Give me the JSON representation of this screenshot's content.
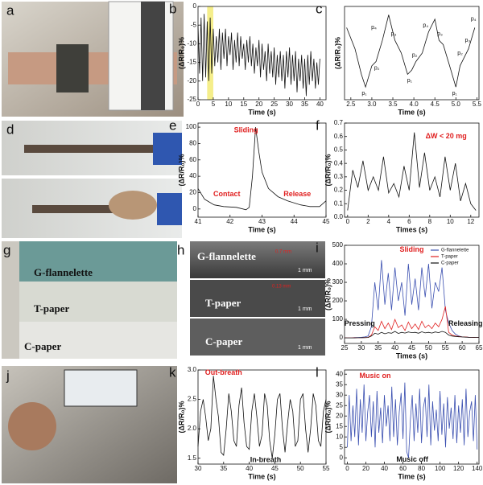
{
  "chart_data": [
    {
      "type": "line",
      "panel": "b",
      "xlabel": "Time (s)",
      "ylabel": "(ΔR/R₀)%",
      "xlim": [
        0,
        42
      ],
      "ylim": [
        -25,
        0
      ],
      "xticks": [
        0,
        5,
        10,
        15,
        20,
        25,
        30,
        35,
        40
      ],
      "yticks": [
        -25,
        -20,
        -15,
        -10,
        -5,
        0
      ],
      "highlight_x": [
        3,
        5
      ],
      "highlight_color": "#f5ee8a",
      "x": [
        0,
        0.5,
        1,
        1.5,
        2,
        2.5,
        3,
        3.5,
        4,
        4.5,
        5,
        5.5,
        6,
        6.5,
        7,
        7.5,
        8,
        8.5,
        9,
        9.5,
        10,
        10.5,
        11,
        11.5,
        12,
        12.5,
        13,
        13.5,
        14,
        14.5,
        15,
        15.5,
        16,
        16.5,
        17,
        17.5,
        18,
        18.5,
        19,
        19.5,
        20,
        20.5,
        21,
        21.5,
        22,
        22.5,
        23,
        23.5,
        24,
        24.5,
        25,
        25.5,
        26,
        26.5,
        27,
        27.5,
        28,
        28.5,
        29,
        29.5,
        30,
        30.5,
        31,
        31.5,
        32,
        32.5,
        33,
        33.5,
        34,
        34.5,
        35,
        35.5,
        36,
        36.5,
        37,
        37.5,
        38,
        38.5,
        39,
        39.5,
        40
      ],
      "series": [
        {
          "color": "#111111",
          "values": [
            -5,
            -18,
            -3,
            -20,
            -2,
            -19,
            -4,
            -20,
            -3,
            -18,
            -6,
            -16,
            -8,
            -15,
            -6,
            -17,
            -7,
            -14,
            -6,
            -16,
            -8,
            -13,
            -7,
            -17,
            -9,
            -15,
            -7,
            -16,
            -8,
            -14,
            -10,
            -17,
            -9,
            -15,
            -8,
            -16,
            -10,
            -18,
            -11,
            -16,
            -9,
            -19,
            -10,
            -17,
            -12,
            -20,
            -10,
            -18,
            -12,
            -19,
            -11,
            -21,
            -13,
            -19,
            -12,
            -20,
            -13,
            -22,
            -12,
            -19,
            -11,
            -21,
            -13,
            -20,
            -12,
            -23,
            -14,
            -20,
            -13,
            -22,
            -14,
            -24,
            -13,
            -21,
            -12,
            -20,
            -14,
            -22,
            -15,
            -21,
            -14
          ]
        }
      ]
    },
    {
      "type": "line",
      "panel": "c",
      "xlabel": "Time (s)",
      "ylabel": "(ΔR/R₀)%",
      "xlim": [
        2.35,
        5.55
      ],
      "ylim": [
        -20,
        2
      ],
      "xticks": [
        2.5,
        {
          "value": 3,
          "label": "3.0"
        },
        3.5,
        {
          "value": 4,
          "label": "4.0"
        },
        4.5,
        {
          "value": 5,
          "label": "5.0"
        },
        5.5
      ],
      "x": [
        2.4,
        2.6,
        2.75,
        2.85,
        3.0,
        3.1,
        3.25,
        3.4,
        3.55,
        3.7,
        3.85,
        3.95,
        4.05,
        4.2,
        4.35,
        4.5,
        4.6,
        4.7,
        4.85,
        5.0,
        5.1,
        5.2,
        5.3,
        5.45
      ],
      "series": [
        {
          "color": "#111111",
          "values": [
            -3,
            -8,
            -14,
            -17,
            -12,
            -11,
            -6,
            0,
            -6,
            -9,
            -14,
            -13,
            -11,
            -9,
            -4,
            -1,
            -6,
            -7,
            -12,
            -17,
            -12,
            -10,
            -8,
            -3
          ]
        }
      ],
      "annotations": [
        {
          "text": "p₁"
        },
        {
          "text": "p₂"
        },
        {
          "text": "p₃"
        },
        {
          "text": "p₄"
        },
        {
          "text": "p₁"
        },
        {
          "text": "p₂"
        },
        {
          "text": "p₃"
        },
        {
          "text": "p₄"
        },
        {
          "text": "p₁"
        },
        {
          "text": "p₂"
        },
        {
          "text": "p₃"
        },
        {
          "text": "p₄"
        }
      ]
    },
    {
      "type": "line",
      "panel": "e",
      "xlabel": "Time (s)",
      "ylabel": "(ΔR/R₀)%",
      "xlim": [
        41,
        45
      ],
      "ylim": [
        -10,
        105
      ],
      "xticks": [
        41,
        42,
        43,
        44,
        45
      ],
      "yticks": [
        0,
        20,
        40,
        60,
        80,
        100
      ],
      "x": [
        41,
        41.2,
        41.5,
        41.8,
        42.2,
        42.5,
        42.6,
        42.7,
        42.8,
        42.9,
        43,
        43.2,
        43.5,
        43.8,
        44.2,
        44.5,
        44.8,
        45
      ],
      "series": [
        {
          "color": "#111111",
          "values": [
            25,
            12,
            5,
            3,
            2,
            -1,
            2,
            40,
            100,
            70,
            45,
            25,
            15,
            10,
            5,
            3,
            3,
            10
          ]
        }
      ],
      "annotations": [
        {
          "text": "Sliding",
          "color": "#e02020"
        },
        {
          "text": "Contact",
          "color": "#e02020"
        },
        {
          "text": "Release",
          "color": "#e02020"
        }
      ]
    },
    {
      "type": "line",
      "panel": "f",
      "xlabel": "Times (s)",
      "ylabel": "(ΔR/R₀)%",
      "xlim": [
        -0.3,
        12.8
      ],
      "ylim": [
        0,
        0.7
      ],
      "xticks": [
        0,
        2,
        4,
        6,
        8,
        10,
        12
      ],
      "yticks": [
        {
          "value": 0,
          "label": "0.0"
        },
        0.1,
        0.2,
        0.3,
        0.4,
        0.5,
        0.6,
        0.7
      ],
      "x": [
        0,
        0.5,
        1,
        1.5,
        2,
        2.5,
        3,
        3.5,
        4,
        4.5,
        5,
        5.5,
        6,
        6.5,
        7,
        7.5,
        8,
        8.5,
        9,
        9.5,
        10,
        10.5,
        11,
        11.5,
        12,
        12.5
      ],
      "series": [
        {
          "color": "#111111",
          "values": [
            0.05,
            0.35,
            0.22,
            0.42,
            0.2,
            0.3,
            0.2,
            0.45,
            0.18,
            0.25,
            0.15,
            0.38,
            0.2,
            0.63,
            0.22,
            0.48,
            0.2,
            0.3,
            0.15,
            0.45,
            0.2,
            0.4,
            0.12,
            0.25,
            0.1,
            0.05
          ]
        }
      ],
      "annotations": [
        {
          "text": "ΔW < 20 mg",
          "color": "#e02020"
        }
      ]
    },
    {
      "type": "line",
      "panel": "i",
      "xlabel": "Times (s)",
      "ylabel": "(ΔR/R₀)%",
      "legend": "upper right",
      "xlim": [
        25,
        65
      ],
      "ylim": [
        -30,
        500
      ],
      "xticks": [
        25,
        30,
        35,
        40,
        45,
        50,
        55,
        60,
        65
      ],
      "yticks": [
        0,
        100,
        200,
        300,
        400,
        500
      ],
      "x": [
        25,
        26,
        27,
        28,
        29,
        30,
        31,
        32,
        33,
        34,
        35,
        36,
        37,
        38,
        39,
        40,
        41,
        42,
        43,
        44,
        45,
        46,
        47,
        48,
        49,
        50,
        51,
        52,
        53,
        54,
        55,
        56,
        57,
        58,
        59,
        60,
        61,
        62,
        63,
        64,
        65
      ],
      "series": [
        {
          "name": "G-flannelette",
          "color": "#3a4fb0",
          "values": [
            0,
            0,
            0,
            2,
            2,
            3,
            5,
            10,
            60,
            300,
            150,
            420,
            180,
            350,
            150,
            380,
            200,
            300,
            120,
            400,
            180,
            320,
            150,
            380,
            220,
            400,
            160,
            300,
            250,
            380,
            150,
            80,
            40,
            20,
            10,
            5,
            5,
            3,
            3,
            2,
            2
          ]
        },
        {
          "name": "T-paper",
          "color": "#e02020",
          "values": [
            0,
            0,
            0,
            1,
            1,
            1,
            2,
            2,
            15,
            60,
            40,
            90,
            50,
            80,
            45,
            100,
            55,
            70,
            40,
            85,
            50,
            75,
            45,
            90,
            55,
            70,
            50,
            80,
            60,
            100,
            170,
            30,
            15,
            10,
            8,
            5,
            5,
            3,
            3,
            2,
            2
          ]
        },
        {
          "name": "C-paper",
          "color": "#111111",
          "values": [
            0,
            0,
            0,
            0,
            1,
            1,
            1,
            2,
            10,
            25,
            20,
            30,
            22,
            28,
            25,
            35,
            24,
            30,
            26,
            32,
            28,
            30,
            25,
            33,
            27,
            30,
            26,
            32,
            28,
            35,
            30,
            15,
            10,
            8,
            6,
            5,
            4,
            3,
            3,
            2,
            2
          ]
        }
      ],
      "annotations": [
        {
          "text": "Sliding",
          "color": "#e02020"
        },
        {
          "text": "Pressing"
        },
        {
          "text": "Releasing"
        }
      ]
    },
    {
      "type": "line",
      "panel": "k",
      "xlabel": "Time (s)",
      "ylabel": "(ΔR/R₀)%",
      "xlim": [
        30,
        55
      ],
      "ylim": [
        1.4,
        3.0
      ],
      "xticks": [
        30,
        35,
        40,
        45,
        50,
        55
      ],
      "yticks": [
        1.5,
        {
          "value": 2,
          "label": "2.0"
        },
        2.5,
        {
          "value": 3,
          "label": "3.0"
        }
      ],
      "x": [
        30,
        30.5,
        31,
        31.5,
        32,
        32.5,
        33,
        33.5,
        34,
        34.5,
        35,
        35.5,
        36,
        36.5,
        37,
        37.5,
        38,
        38.5,
        39,
        39.5,
        40,
        40.5,
        41,
        41.5,
        42,
        42.5,
        43,
        43.5,
        44,
        44.5,
        45,
        45.5,
        46,
        46.5,
        47,
        47.5,
        48,
        48.5,
        49,
        49.5,
        50,
        50.5,
        51,
        51.5,
        52,
        52.5,
        53,
        53.5,
        54,
        54.5,
        55
      ],
      "series": [
        {
          "color": "#111111",
          "values": [
            1.7,
            2.3,
            2.5,
            2.2,
            1.8,
            2.0,
            2.9,
            2.5,
            2.2,
            1.6,
            1.55,
            2.0,
            2.6,
            2.3,
            1.8,
            1.7,
            2.4,
            2.7,
            2.1,
            1.7,
            1.65,
            2.3,
            2.6,
            2.2,
            1.7,
            1.9,
            2.6,
            2.4,
            1.8,
            1.5,
            1.9,
            2.5,
            2.6,
            2.0,
            1.6,
            2.1,
            2.5,
            2.3,
            1.7,
            1.8,
            2.5,
            2.6,
            2.0,
            1.6,
            2.0,
            2.6,
            2.4,
            1.8,
            1.7,
            2.3,
            2.5
          ]
        }
      ],
      "annotations": [
        {
          "text": "Out-breath",
          "color": "#e02020"
        },
        {
          "text": "In-breath"
        }
      ]
    },
    {
      "type": "line",
      "panel": "l",
      "xlabel": "Time (s)",
      "ylabel": "(ΔR/R₀)%",
      "xlim": [
        -3,
        142
      ],
      "ylim": [
        -3,
        42
      ],
      "xticks": [
        0,
        20,
        40,
        60,
        80,
        100,
        120,
        140
      ],
      "yticks": [
        0,
        5,
        10,
        15,
        20,
        25,
        30,
        35,
        40
      ],
      "x": [
        0,
        2,
        4,
        6,
        8,
        10,
        12,
        14,
        16,
        18,
        20,
        22,
        24,
        26,
        28,
        30,
        32,
        34,
        36,
        38,
        40,
        42,
        44,
        46,
        48,
        50,
        52,
        54,
        56,
        58,
        60,
        62,
        64,
        66,
        68,
        70,
        72,
        74,
        76,
        78,
        80,
        82,
        84,
        86,
        88,
        90,
        92,
        94,
        96,
        98,
        100,
        102,
        104,
        106,
        108,
        110,
        112,
        114,
        116,
        118,
        120,
        122,
        124,
        126,
        128,
        130,
        132,
        134,
        136,
        138,
        140
      ],
      "series": [
        {
          "color": "#3a4fb0",
          "values": [
            5,
            30,
            8,
            25,
            10,
            33,
            6,
            28,
            12,
            35,
            8,
            22,
            30,
            10,
            27,
            5,
            32,
            12,
            24,
            7,
            30,
            15,
            25,
            8,
            34,
            10,
            28,
            6,
            22,
            31,
            9,
            36,
            3,
            0,
            18,
            30,
            8,
            26,
            12,
            33,
            7,
            24,
            29,
            10,
            35,
            6,
            27,
            13,
            23,
            8,
            32,
            11,
            26,
            5,
            29,
            14,
            24,
            9,
            30,
            7,
            25,
            12,
            28,
            6,
            33,
            10,
            22,
            27,
            8,
            30,
            4
          ]
        }
      ],
      "annotations": [
        {
          "text": "Music on",
          "color": "#e02020"
        },
        {
          "text": "Music off"
        }
      ]
    }
  ],
  "photos": [
    {
      "panel": "a"
    },
    {
      "panel": "d"
    },
    {
      "panel": "g",
      "labels": [
        "G-flannelette",
        "T-paper",
        "C-paper"
      ]
    },
    {
      "panel": "h",
      "labels": [
        "G-flannelette",
        "T-paper",
        "C-paper"
      ],
      "scale": "1 mm",
      "dimensions": [
        "0.7 mm",
        "0.13 mm"
      ]
    },
    {
      "panel": "j"
    }
  ]
}
